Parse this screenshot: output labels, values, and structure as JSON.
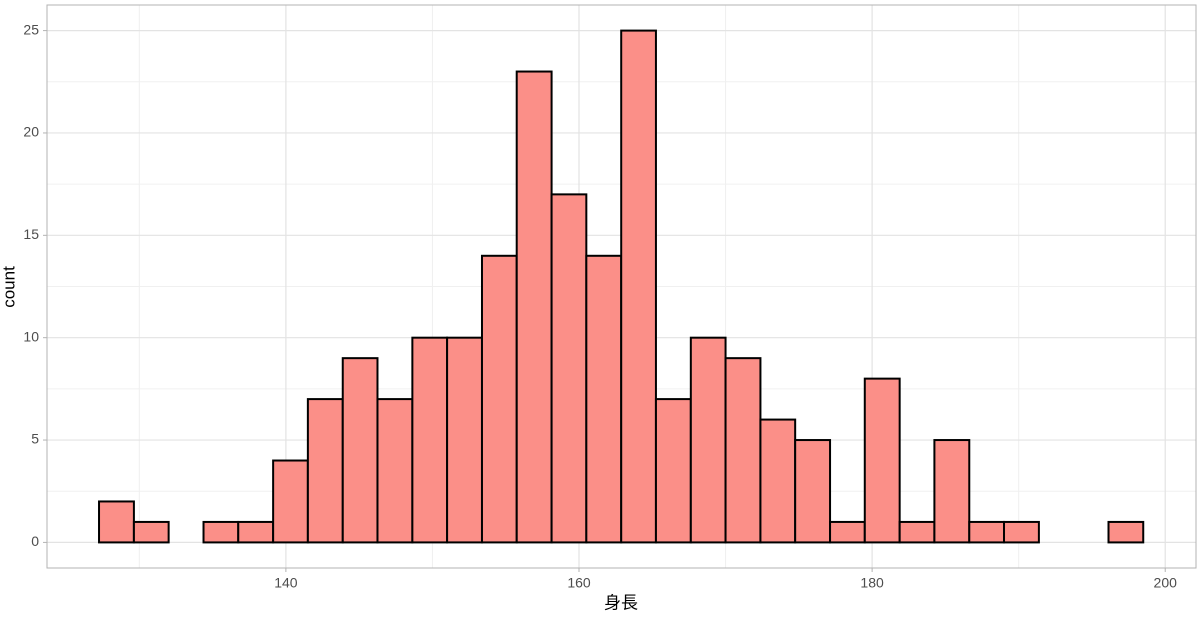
{
  "chart_data": {
    "type": "histogram",
    "x_label": "身長",
    "y_label": "count",
    "bins": [
      127.25,
      129.63,
      132.0,
      134.38,
      136.75,
      139.13,
      141.5,
      143.88,
      146.25,
      148.63,
      151.0,
      153.38,
      155.75,
      158.13,
      160.5,
      162.88,
      165.25,
      167.63,
      170.0,
      172.38,
      174.75,
      177.13,
      179.5,
      181.88,
      184.25,
      186.63,
      189.0,
      191.38,
      193.75,
      196.13,
      198.5
    ],
    "values": [
      2,
      1,
      0,
      1,
      1,
      4,
      7,
      9,
      7,
      10,
      10,
      14,
      23,
      17,
      14,
      25,
      7,
      10,
      9,
      6,
      5,
      1,
      8,
      1,
      5,
      1,
      1,
      0,
      0,
      1
    ],
    "color": "#fb8f88",
    "xlim": [
      123.7,
      202.1
    ],
    "xticks": [
      140,
      160,
      180,
      200
    ],
    "ylim": [
      -1.25,
      26.25
    ],
    "yticks": [
      0,
      5,
      10,
      15,
      20,
      25
    ],
    "grid": true
  }
}
